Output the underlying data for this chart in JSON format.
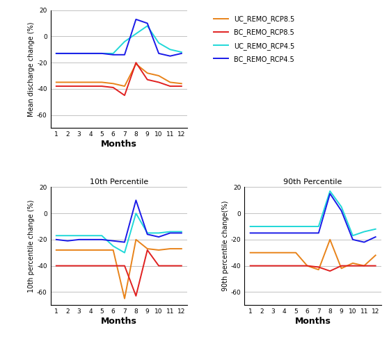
{
  "months": [
    1,
    2,
    3,
    4,
    5,
    6,
    7,
    8,
    9,
    10,
    11,
    12
  ],
  "mean": {
    "UC_REMO_RCP8.5": [
      -35,
      -35,
      -35,
      -35,
      -35,
      -36,
      -38,
      -21,
      -28,
      -30,
      -35,
      -36
    ],
    "BC_REMO_RCP8.5": [
      -38,
      -38,
      -38,
      -38,
      -38,
      -39,
      -45,
      -20,
      -33,
      -35,
      -38,
      -38
    ],
    "UC_REMO_RCP4.5": [
      -13,
      -13,
      -13,
      -13,
      -13,
      -13,
      -4,
      2,
      8,
      -5,
      -10,
      -12
    ],
    "BC_REMO_RCP4.5": [
      -13,
      -13,
      -13,
      -13,
      -13,
      -14,
      -14,
      13,
      10,
      -13,
      -15,
      -13
    ]
  },
  "p10": {
    "UC_REMO_RCP8.5": [
      -28,
      -28,
      -28,
      -28,
      -28,
      -28,
      -65,
      -20,
      -27,
      -28,
      -27,
      -27
    ],
    "BC_REMO_RCP8.5": [
      -40,
      -40,
      -40,
      -40,
      -40,
      -40,
      -40,
      -63,
      -28,
      -40,
      -40,
      -40
    ],
    "UC_REMO_RCP4.5": [
      -17,
      -17,
      -17,
      -17,
      -17,
      -25,
      -30,
      0,
      -15,
      -15,
      -14,
      -14
    ],
    "BC_REMO_RCP4.5": [
      -20,
      -21,
      -20,
      -20,
      -20,
      -21,
      -22,
      10,
      -16,
      -18,
      -15,
      -15
    ]
  },
  "p90": {
    "UC_REMO_RCP8.5": [
      -30,
      -30,
      -30,
      -30,
      -30,
      -40,
      -43,
      -20,
      -42,
      -38,
      -40,
      -32
    ],
    "BC_REMO_RCP8.5": [
      -40,
      -40,
      -40,
      -40,
      -40,
      -40,
      -41,
      -44,
      -40,
      -40,
      -40,
      -40
    ],
    "UC_REMO_RCP4.5": [
      -10,
      -10,
      -10,
      -10,
      -10,
      -10,
      -10,
      17,
      5,
      -17,
      -14,
      -12
    ],
    "BC_REMO_RCP4.5": [
      -15,
      -15,
      -15,
      -15,
      -15,
      -15,
      -15,
      15,
      2,
      -20,
      -22,
      -18
    ]
  },
  "colors": {
    "UC_REMO_RCP8.5": "#E8831A",
    "BC_REMO_RCP8.5": "#E02020",
    "UC_REMO_RCP4.5": "#20D8D8",
    "BC_REMO_RCP4.5": "#1A1AE8"
  },
  "legend_labels": [
    "UC_REMO_RCP8.5",
    "BC_REMO_RCP8.5",
    "UC_REMO_RCP4.5",
    "BC_REMO_RCP4.5"
  ],
  "ylim": [
    -70,
    20
  ],
  "yticks": [
    20,
    0,
    -20,
    -40,
    -60
  ],
  "xticks": [
    1,
    2,
    3,
    4,
    5,
    6,
    7,
    8,
    9,
    10,
    11,
    12
  ],
  "xlabel": "Months",
  "mean_ylabel": "Mean discharge change (%)",
  "p10_ylabel": "10th percentile change (%)",
  "p90_ylabel": "90th percentile change(%)",
  "p10_title": "10th Percentile",
  "p90_title": "90th Percentile",
  "grid_color": "#aaaaaa",
  "bg_color": "#ffffff",
  "linewidth": 1.4
}
